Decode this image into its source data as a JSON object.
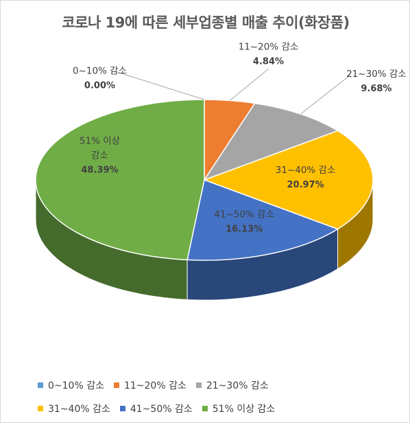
{
  "chart_data": {
    "type": "pie",
    "title": "코로나 19에 따른 세부업종별 매출 추이(화장품)",
    "categories": [
      "0~10% 감소",
      "11~20% 감소",
      "21~30% 감소",
      "31~40% 감소",
      "41~50% 감소",
      "51% 이상 감소"
    ],
    "values": [
      0.0,
      4.84,
      9.68,
      20.97,
      16.13,
      48.39
    ],
    "value_labels": [
      "0.00%",
      "4.84%",
      "9.68%",
      "20.97%",
      "16.13%",
      "48.39%"
    ],
    "slice_labels": [
      [
        "0~10% 감소"
      ],
      [
        "11~20% 감소"
      ],
      [
        "21~30% 감소"
      ],
      [
        "31~40% 감소"
      ],
      [
        "41~50% 감소"
      ],
      [
        "51% 이상",
        "감소"
      ]
    ],
    "colors": [
      "#5b9bd5",
      "#ed7d31",
      "#a5a5a5",
      "#ffc000",
      "#4472c4",
      "#70ad47"
    ],
    "legend_position": "bottom",
    "style": "3d"
  }
}
